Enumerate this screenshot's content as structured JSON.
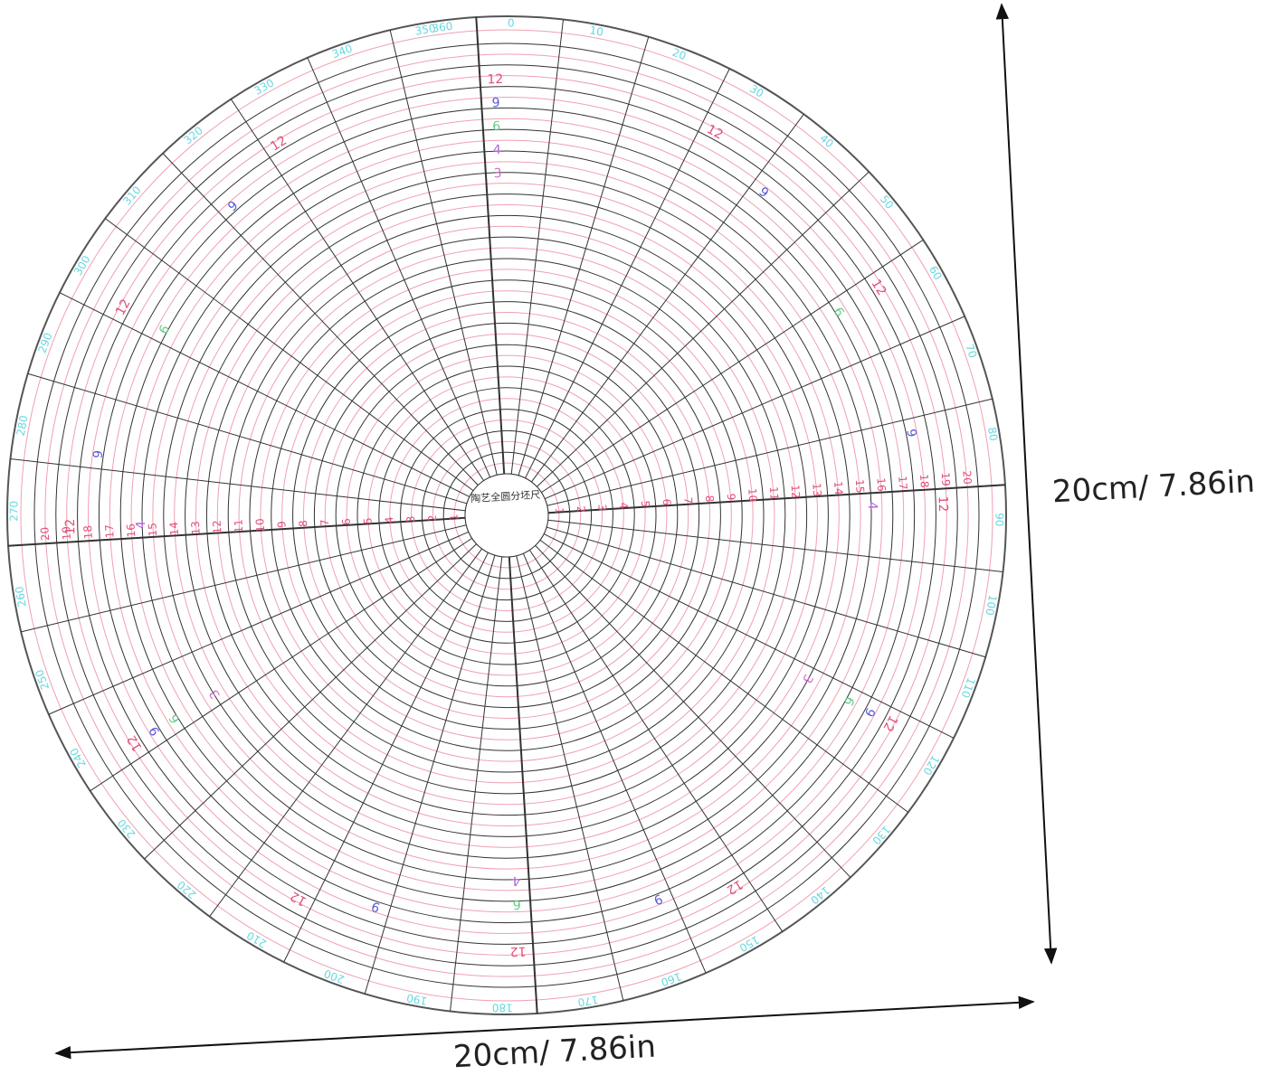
{
  "center_label": "陶艺全圆分坯尺",
  "width_label": "20cm/ 7.86in",
  "height_label": "20cm/ 7.86in",
  "degree_labels": [
    0,
    10,
    20,
    30,
    40,
    50,
    60,
    70,
    80,
    90,
    100,
    110,
    120,
    130,
    140,
    150,
    160,
    170,
    180,
    190,
    200,
    210,
    220,
    230,
    240,
    250,
    260,
    270,
    280,
    290,
    300,
    310,
    320,
    330,
    340,
    350,
    360
  ],
  "radius_labels": [
    1,
    2,
    3,
    4,
    5,
    6,
    7,
    8,
    9,
    10,
    11,
    12,
    13,
    14,
    15,
    16,
    17,
    18,
    19,
    20
  ],
  "divisions": [
    {
      "count": 12,
      "color": "#e0507a"
    },
    {
      "count": 9,
      "color": "#5a5ad8"
    },
    {
      "count": 6,
      "color": "#66cc88"
    },
    {
      "count": 4,
      "color": "#b060d8"
    },
    {
      "count": 3,
      "color": "#d070c8"
    }
  ]
}
